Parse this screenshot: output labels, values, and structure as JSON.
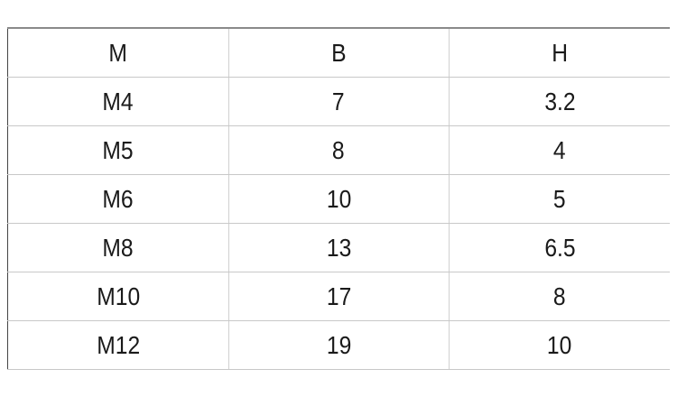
{
  "table": {
    "headers": [
      "M",
      "B",
      "H"
    ],
    "rows": [
      [
        "M4",
        "7",
        "3.2"
      ],
      [
        "M5",
        "8",
        "4"
      ],
      [
        "M6",
        "10",
        "5"
      ],
      [
        "M8",
        "13",
        "6.5"
      ],
      [
        "M10",
        "17",
        "8"
      ],
      [
        "M12",
        "19",
        "10"
      ]
    ]
  }
}
